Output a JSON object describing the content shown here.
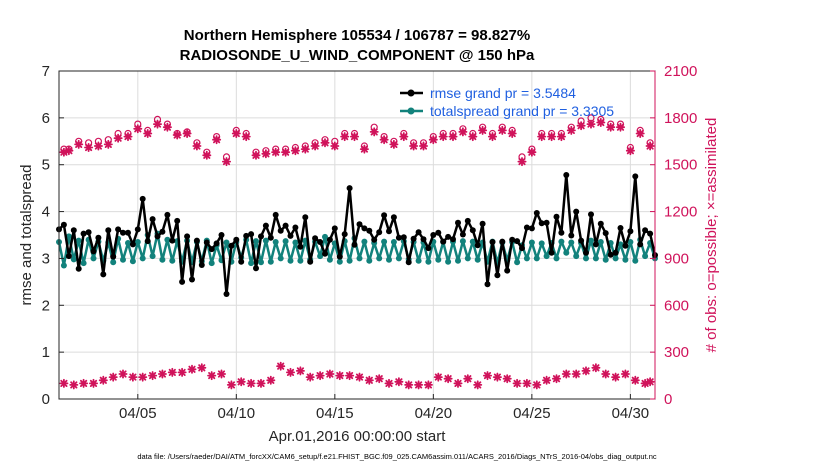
{
  "chart_data": {
    "type": "line",
    "title_line1": "Northern Hemisphere 105534 / 106787 = 98.827%",
    "title_line2": "RADIOSONDE_U_WIND_COMPONENT @ 150 hPa",
    "xlabel": "Apr.01,2016 00:00:00 start",
    "ylabel_left": "rmse and totalspread",
    "ylabel_right": "# of obs: o=possible; ×=assimilated",
    "footnote": "data file: /Users/raeder/DAI/ATM_forcXX/CAM6_setup/f.e21.FHIST_BGC.f09_025.CAM6assim.011/ACARS_2016/Diags_NTrS_2016-04/obs_diag_output.nc",
    "xlim": [
      1,
      31.25
    ],
    "ylim_left": [
      0,
      7
    ],
    "ylim_right": [
      0,
      2100
    ],
    "x_ticks": [
      5,
      10,
      15,
      20,
      25,
      30
    ],
    "x_tick_labels": [
      "04/05",
      "04/10",
      "04/15",
      "04/20",
      "04/25",
      "04/30"
    ],
    "y_ticks_left": [
      "0",
      "1",
      "2",
      "3",
      "4",
      "5",
      "6",
      "7"
    ],
    "y_ticks_right": [
      "0",
      "300",
      "600",
      "900",
      "1200",
      "1500",
      "1800",
      "2100"
    ],
    "x_start": 1,
    "x_step": 0.25,
    "series": [
      {
        "name": "rmse",
        "legend": "rmse grand pr = 3.5484",
        "color": "#000000",
        "values": [
          3.62,
          3.72,
          3.05,
          3.6,
          2.78,
          3.53,
          3.56,
          3.15,
          3.44,
          2.66,
          3.6,
          3.04,
          3.62,
          3.55,
          3.55,
          3.3,
          3.62,
          4.27,
          3.37,
          3.84,
          3.47,
          3.57,
          3.93,
          3.38,
          3.8,
          2.5,
          3.47,
          2.55,
          3.38,
          2.86,
          3.34,
          3.2,
          3.32,
          3.5,
          2.24,
          3.27,
          3.4,
          2.93,
          3.48,
          3.52,
          2.79,
          3.47,
          3.7,
          3.44,
          3.93,
          3.59,
          3.7,
          3.48,
          3.66,
          3.25,
          3.88,
          2.93,
          3.43,
          3.35,
          3.1,
          3.4,
          3.64,
          3.04,
          3.52,
          4.5,
          3.29,
          3.73,
          3.64,
          3.59,
          3.4,
          3.56,
          3.92,
          3.58,
          3.88,
          3.44,
          3.45,
          2.92,
          3.42,
          3.56,
          3.41,
          3.22,
          3.5,
          3.55,
          3.36,
          3.46,
          3.41,
          3.76,
          3.51,
          3.8,
          3.6,
          3.28,
          3.74,
          2.45,
          3.35,
          2.64,
          3.36,
          2.74,
          3.4,
          3.37,
          3.22,
          3.66,
          3.64,
          3.97,
          3.75,
          3.76,
          3.12,
          3.89,
          3.55,
          4.78,
          3.49,
          4.0,
          3.38,
          3.12,
          3.94,
          3.3,
          3.74,
          3.54,
          3.08,
          3.12,
          3.65,
          3.27,
          3.58,
          4.75,
          3.3,
          3.6,
          3.53,
          3.07
        ]
      },
      {
        "name": "totalspread",
        "legend": "totalspread grand pr = 3.3305",
        "color": "#12827c",
        "values": [
          3.35,
          2.85,
          3.47,
          2.98,
          3.38,
          2.9,
          3.4,
          3.0,
          3.36,
          2.95,
          3.34,
          2.92,
          3.42,
          2.97,
          3.33,
          2.94,
          3.35,
          3.0,
          3.5,
          3.05,
          3.53,
          2.97,
          3.4,
          2.95,
          3.37,
          2.93,
          3.38,
          2.92,
          3.35,
          2.94,
          3.38,
          2.9,
          3.28,
          2.96,
          3.34,
          2.93,
          3.35,
          3.02,
          3.4,
          2.9,
          3.37,
          2.92,
          3.38,
          2.93,
          3.35,
          3.0,
          3.37,
          2.95,
          3.34,
          2.95,
          3.38,
          2.97,
          3.36,
          3.05,
          3.46,
          2.97,
          3.32,
          2.93,
          3.37,
          2.95,
          3.43,
          3.0,
          3.36,
          2.95,
          3.33,
          3.0,
          3.36,
          2.97,
          3.35,
          3.0,
          3.37,
          2.98,
          3.35,
          2.95,
          3.34,
          2.93,
          3.36,
          2.97,
          3.35,
          2.93,
          3.36,
          2.95,
          3.37,
          3.0,
          3.36,
          2.97,
          3.34,
          2.93,
          3.36,
          2.9,
          3.34,
          2.96,
          3.35,
          2.92,
          3.28,
          3.0,
          3.34,
          3.0,
          3.32,
          3.05,
          3.33,
          3.0,
          3.36,
          3.12,
          3.34,
          3.05,
          3.33,
          3.0,
          3.38,
          3.0,
          3.35,
          2.97,
          3.33,
          3.0,
          3.3,
          2.97,
          3.35,
          2.95,
          3.4,
          3.05,
          3.33,
          3.0
        ]
      }
    ],
    "obs_possible": {
      "name": "# of obs possible",
      "marker": "o",
      "color": "#d0135b",
      "x": [
        1.25,
        1.5,
        2,
        2.5,
        3,
        3.5,
        4,
        4.5,
        5,
        5.5,
        6,
        6.5,
        7,
        7.5,
        8,
        8.5,
        9,
        9.5,
        10,
        10.5,
        11,
        11.5,
        12,
        12.5,
        13,
        13.5,
        14,
        14.5,
        15,
        15.5,
        16,
        16.5,
        17,
        17.5,
        18,
        18.5,
        19,
        19.5,
        20,
        20.5,
        21,
        21.5,
        22,
        22.5,
        23,
        23.5,
        24,
        24.5,
        25,
        25.5,
        26,
        26.5,
        27,
        27.5,
        28,
        28.5,
        29,
        29.5,
        30,
        30.5,
        31
      ],
      "values": [
        1600,
        1600,
        1650,
        1640,
        1650,
        1660,
        1700,
        1700,
        1760,
        1720,
        1790,
        1760,
        1700,
        1710,
        1640,
        1580,
        1680,
        1550,
        1720,
        1700,
        1580,
        1590,
        1600,
        1600,
        1610,
        1620,
        1640,
        1660,
        1650,
        1700,
        1700,
        1620,
        1740,
        1680,
        1650,
        1700,
        1640,
        1640,
        1680,
        1700,
        1700,
        1730,
        1700,
        1740,
        1700,
        1740,
        1720,
        1550,
        1600,
        1700,
        1700,
        1700,
        1740,
        1780,
        1800,
        1790,
        1760,
        1760,
        1610,
        1720,
        1640
      ],
      "assimilated": [
        1580,
        1590,
        1630,
        1610,
        1620,
        1630,
        1670,
        1680,
        1730,
        1700,
        1760,
        1740,
        1690,
        1700,
        1620,
        1560,
        1660,
        1520,
        1700,
        1680,
        1560,
        1570,
        1580,
        1580,
        1590,
        1600,
        1620,
        1640,
        1620,
        1680,
        1680,
        1600,
        1710,
        1660,
        1630,
        1680,
        1620,
        1620,
        1660,
        1680,
        1680,
        1710,
        1680,
        1720,
        1680,
        1720,
        1700,
        1520,
        1580,
        1680,
        1680,
        1680,
        1720,
        1750,
        1760,
        1770,
        1740,
        1740,
        1590,
        1700,
        1620
      ]
    },
    "obs_low": {
      "name": "# of obs (lower cluster)",
      "color": "#d0135b",
      "x": [
        1.25,
        1.75,
        2.25,
        2.75,
        3.25,
        3.75,
        4.25,
        4.75,
        5.25,
        5.75,
        6.25,
        6.75,
        7.25,
        7.75,
        8.25,
        8.75,
        9.25,
        9.75,
        10.25,
        10.75,
        11.25,
        11.75,
        12.25,
        12.75,
        13.25,
        13.75,
        14.25,
        14.75,
        15.25,
        15.75,
        16.25,
        16.75,
        17.25,
        17.75,
        18.25,
        18.75,
        19.25,
        19.75,
        20.25,
        20.75,
        21.25,
        21.75,
        22.25,
        22.75,
        23.25,
        23.75,
        24.25,
        24.75,
        25.25,
        25.75,
        26.25,
        26.75,
        27.25,
        27.75,
        28.25,
        28.75,
        29.25,
        29.75,
        30.25,
        30.75,
        31
      ],
      "values": [
        100,
        90,
        100,
        100,
        120,
        140,
        160,
        140,
        140,
        150,
        160,
        170,
        170,
        190,
        200,
        150,
        160,
        90,
        110,
        100,
        100,
        120,
        210,
        170,
        180,
        140,
        150,
        160,
        150,
        150,
        140,
        120,
        130,
        100,
        110,
        90,
        90,
        90,
        140,
        130,
        100,
        130,
        90,
        150,
        140,
        130,
        100,
        100,
        90,
        120,
        130,
        160,
        160,
        180,
        200,
        160,
        140,
        160,
        120,
        100,
        110
      ]
    }
  }
}
